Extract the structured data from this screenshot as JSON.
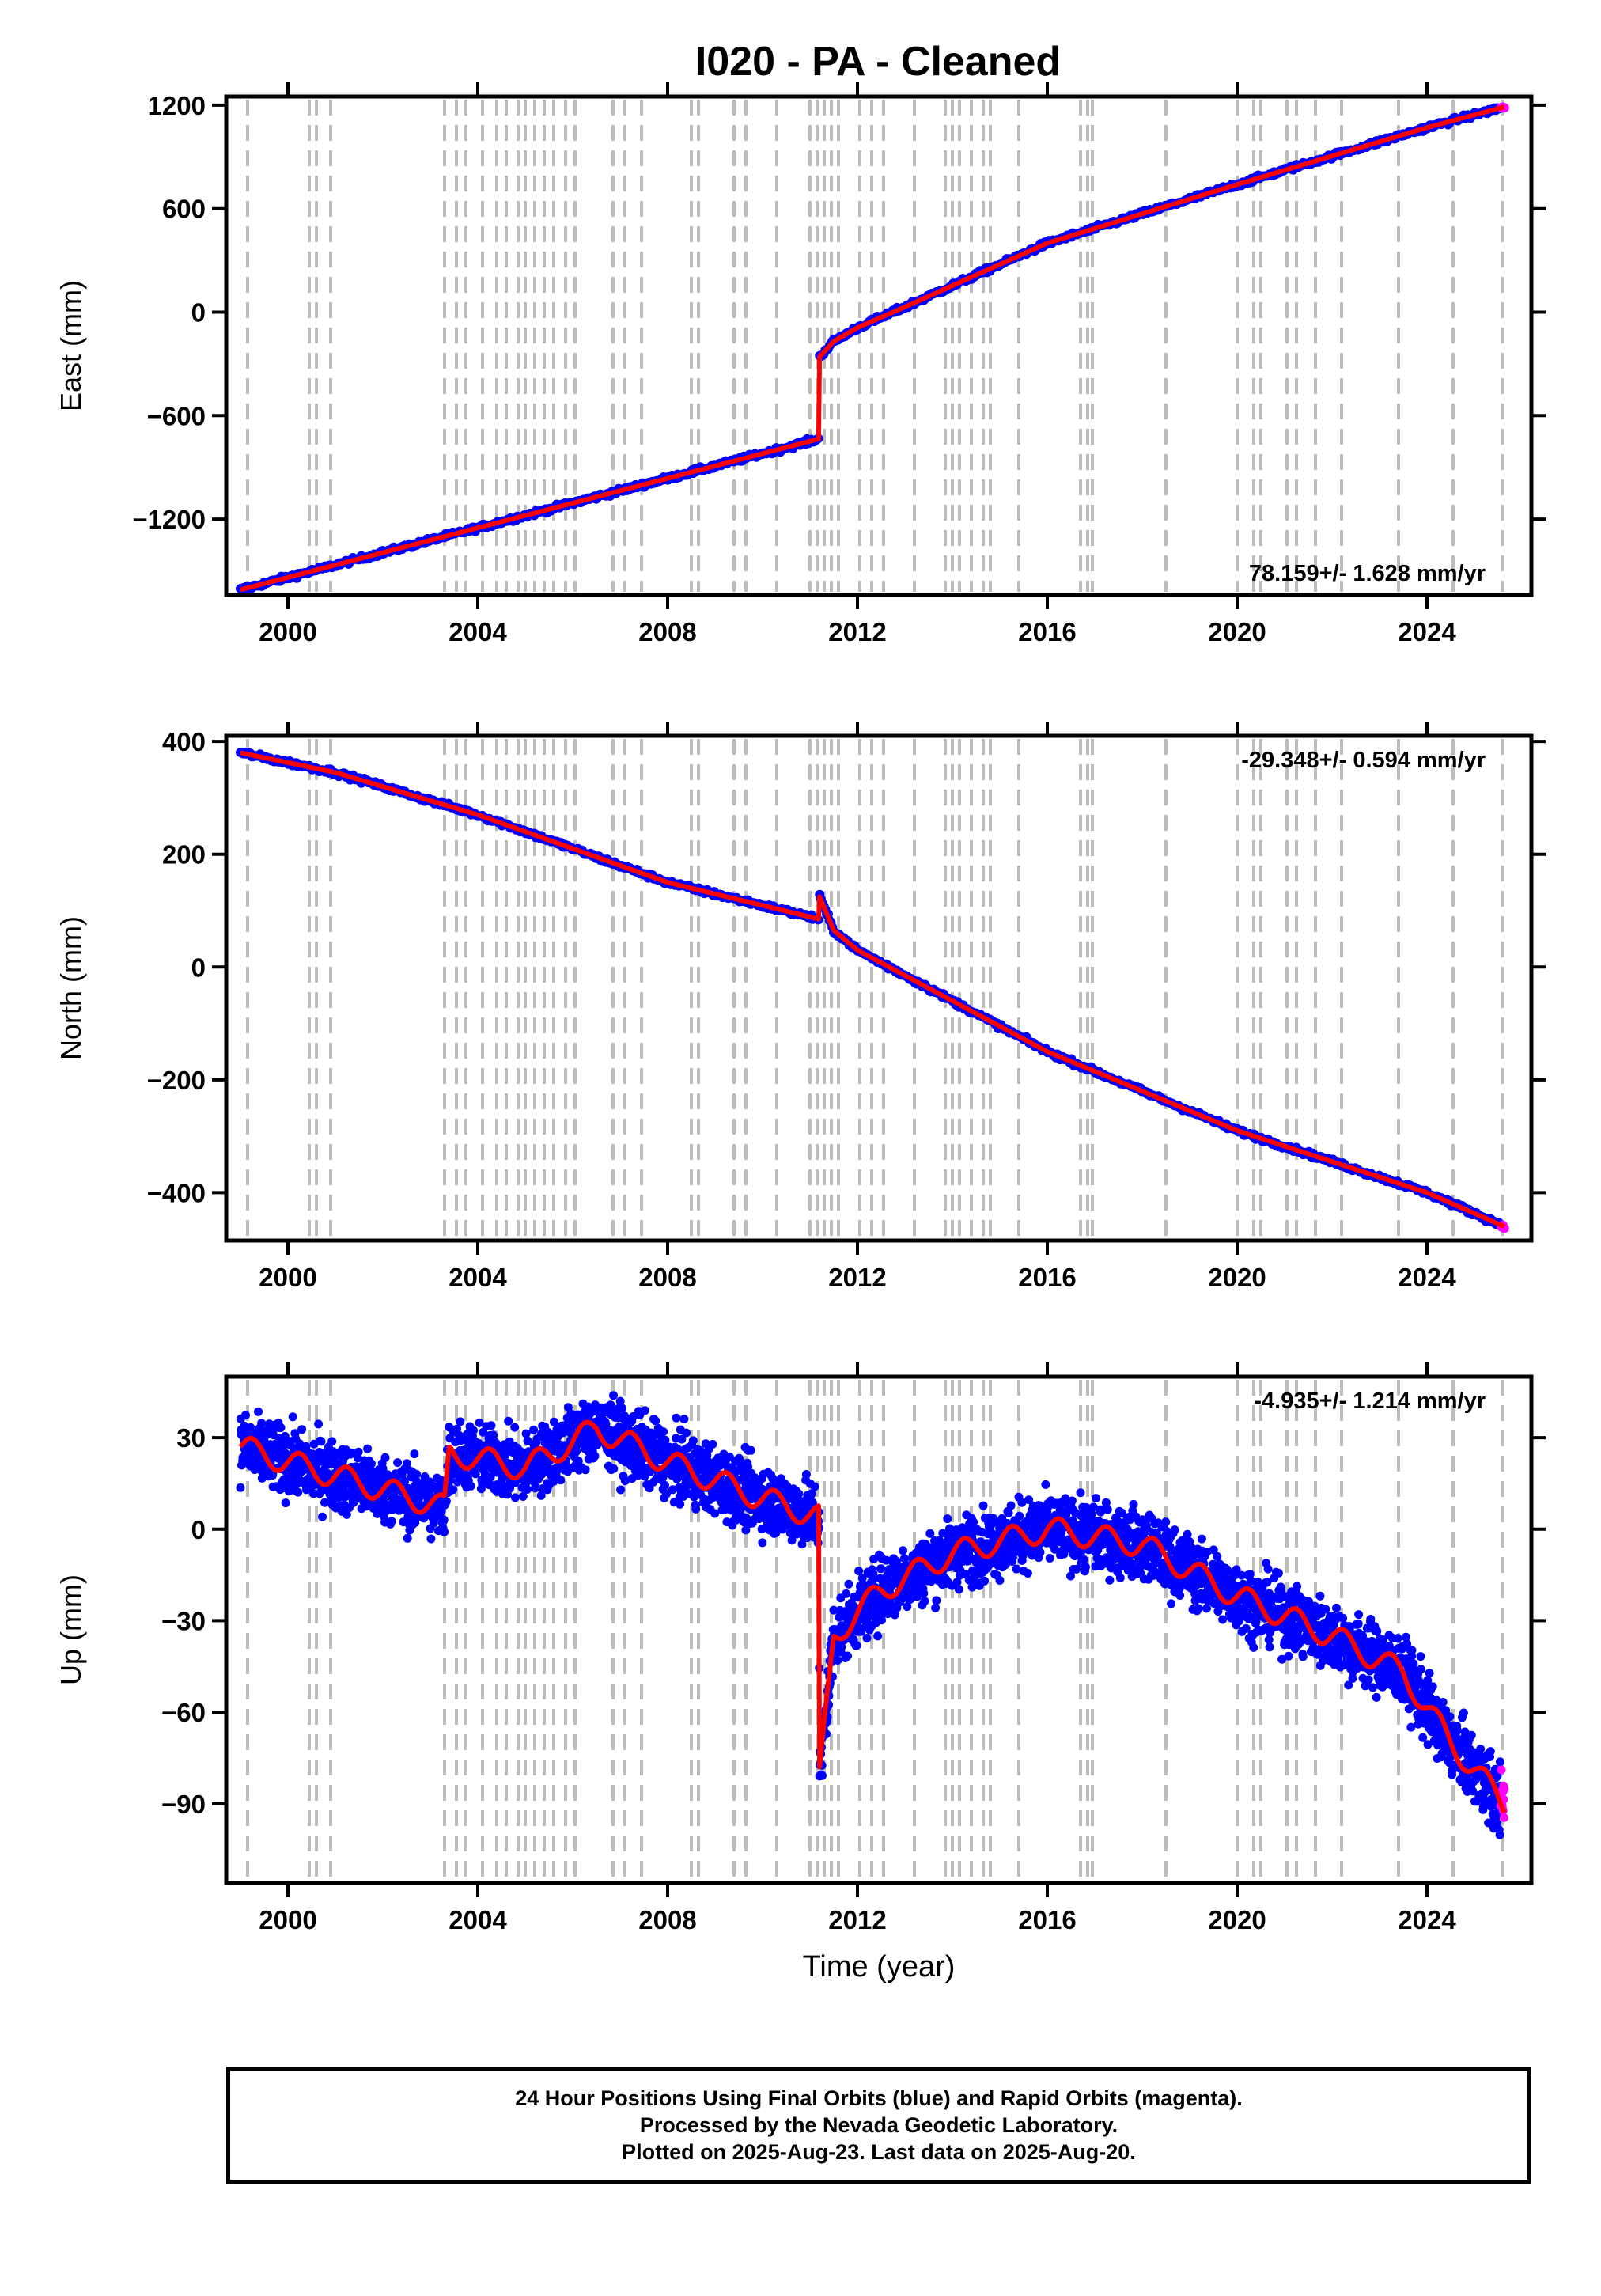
{
  "title": "I020  - PA - Cleaned",
  "x_axis": {
    "label": "Time (year)",
    "range": [
      1998.7,
      2026.2
    ],
    "ticks": [
      "2000",
      "2004",
      "2008",
      "2012",
      "2016",
      "2020",
      "2024"
    ],
    "tick_values": [
      2000,
      2004,
      2008,
      2012,
      2016,
      2020,
      2024
    ]
  },
  "colors": {
    "final_orbits": "#0000ff",
    "rapid_orbits": "#ff00ff",
    "model_fit": "#ff0000",
    "step_lines": "#bdbdbd"
  },
  "footer": {
    "line1": "24 Hour Positions Using Final Orbits (blue) and Rapid Orbits (magenta).",
    "line2": "Processed by the Nevada Geodetic Laboratory.",
    "line3": "Plotted on 2025-Aug-23. Last data on 2025-Aug-20."
  },
  "chart_data": [
    {
      "type": "scatter",
      "component": "East",
      "ylabel": "East (mm)",
      "ylim": [
        -1640,
        1250
      ],
      "yticks": [
        -1200,
        -600,
        0,
        600,
        1200
      ],
      "rate_label": "78.159+/- 1.628 mm/yr",
      "rate_position": "bottom-right",
      "series_trend": {
        "x": [
          1999.0,
          2011.19,
          2011.2,
          2011.5,
          2012.0,
          2013.0,
          2016.0,
          2020.0,
          2024.0,
          2025.63
        ],
        "y": [
          -1610,
          -735,
          -260,
          -170,
          -90,
          30,
          400,
          740,
          1070,
          1190
        ]
      }
    },
    {
      "type": "scatter",
      "component": "North",
      "ylabel": "North (mm)",
      "ylim": [
        -485,
        410
      ],
      "yticks": [
        -400,
        -200,
        0,
        200,
        400
      ],
      "rate_label": "-29.348+/- 0.594 mm/yr",
      "rate_position": "top-right",
      "series_trend": {
        "x": [
          1999.0,
          2001.0,
          2004.0,
          2008.0,
          2011.19,
          2011.2,
          2011.5,
          2012.0,
          2016.0,
          2020.0,
          2024.0,
          2025.63
        ],
        "y": [
          380,
          345,
          270,
          150,
          85,
          125,
          65,
          30,
          -150,
          -290,
          -400,
          -460
        ]
      }
    },
    {
      "type": "scatter",
      "component": "Up",
      "ylabel": "Up (mm)",
      "ylim": [
        -116,
        50
      ],
      "yticks": [
        -90,
        -60,
        -30,
        0,
        30
      ],
      "rate_label": "-4.935+/- 1.214 mm/yr",
      "rate_position": "top-right",
      "series_trend": {
        "x": [
          1999.0,
          2000.0,
          2002.0,
          2003.3,
          2003.4,
          2005.0,
          2006.5,
          2008.0,
          2010.0,
          2011.19,
          2011.2,
          2011.5,
          2012.5,
          2014.0,
          2016.0,
          2018.0,
          2020.0,
          2022.0,
          2023.5,
          2024.5,
          2025.63
        ],
        "y": [
          27,
          22,
          13,
          7,
          25,
          20,
          33,
          22,
          10,
          4,
          -82,
          -35,
          -20,
          -8,
          0,
          -5,
          -22,
          -35,
          -47,
          -70,
          -90
        ]
      }
    }
  ],
  "step_line_years": [
    1999.15,
    2000.45,
    2000.6,
    2000.9,
    2003.3,
    2003.55,
    2003.75,
    2004.1,
    2004.4,
    2004.6,
    2004.85,
    2005.0,
    2005.2,
    2005.4,
    2005.6,
    2005.85,
    2006.05,
    2006.85,
    2007.1,
    2007.45,
    2008.5,
    2008.65,
    2009.4,
    2009.65,
    2010.3,
    2011.0,
    2011.15,
    2011.3,
    2011.45,
    2011.6,
    2012.05,
    2012.3,
    2012.55,
    2013.2,
    2013.85,
    2014.0,
    2014.15,
    2014.4,
    2014.65,
    2014.8,
    2015.4,
    2016.7,
    2016.85,
    2016.95,
    2018.5,
    2020.0,
    2020.35,
    2020.5,
    2021.05,
    2021.25,
    2021.65,
    2022.2,
    2023.4,
    2024.55,
    2025.6
  ]
}
